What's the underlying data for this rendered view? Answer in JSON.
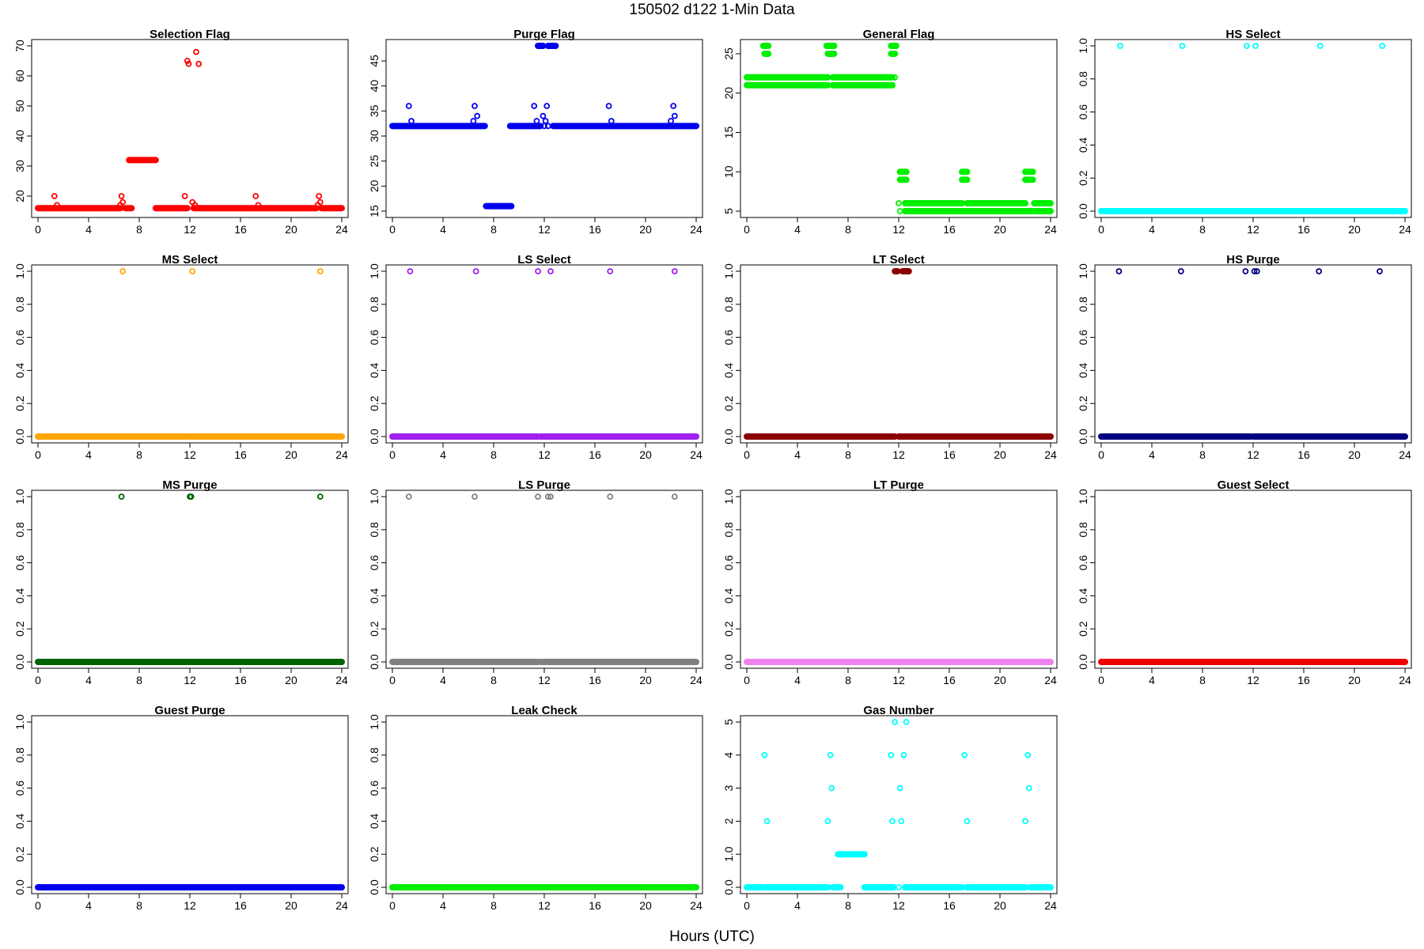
{
  "figure": {
    "title": "150502   d122   1-Min Data",
    "xlabel": "Hours (UTC)"
  },
  "chart_data": [
    {
      "type": "scatter",
      "title": "Selection Flag",
      "color": "#ff0000",
      "xlim": [
        0,
        24
      ],
      "ylim": [
        15,
        70
      ],
      "xticks": [
        0,
        4,
        8,
        12,
        16,
        20,
        24
      ],
      "yticks": [
        20,
        30,
        40,
        50,
        60,
        70
      ],
      "baseline": {
        "y": 16,
        "segments": [
          [
            0,
            6.5
          ],
          [
            6.9,
            7.4
          ],
          [
            9.3,
            11.8
          ],
          [
            12.3,
            22.0
          ],
          [
            22.4,
            24
          ]
        ]
      },
      "plateaus": [
        {
          "y": 32,
          "from": 7.2,
          "to": 9.3
        }
      ],
      "points": [
        [
          1.3,
          20
        ],
        [
          1.5,
          17
        ],
        [
          6.5,
          17
        ],
        [
          6.6,
          20
        ],
        [
          6.7,
          18
        ],
        [
          11.6,
          20
        ],
        [
          11.8,
          65
        ],
        [
          11.9,
          64
        ],
        [
          12.2,
          18
        ],
        [
          12.4,
          17
        ],
        [
          12.5,
          68
        ],
        [
          12.7,
          64
        ],
        [
          17.2,
          20
        ],
        [
          17.4,
          17
        ],
        [
          22.1,
          17
        ],
        [
          22.2,
          20
        ],
        [
          22.3,
          18
        ]
      ]
    },
    {
      "type": "scatter",
      "title": "Purge Flag",
      "color": "#0000ee",
      "xlim": [
        0,
        24
      ],
      "ylim": [
        15,
        48
      ],
      "xticks": [
        0,
        4,
        8,
        12,
        16,
        20,
        24
      ],
      "yticks": [
        15,
        20,
        25,
        30,
        35,
        40,
        45
      ],
      "baseline": {
        "y": 32,
        "segments": [
          [
            0,
            7.3
          ],
          [
            9.3,
            11.7
          ],
          [
            12.7,
            24
          ]
        ]
      },
      "plateaus": [
        {
          "y": 16,
          "from": 7.4,
          "to": 9.4
        },
        {
          "y": 48,
          "from": 11.5,
          "to": 11.9
        },
        {
          "y": 48,
          "from": 12.3,
          "to": 12.9
        }
      ],
      "points": [
        [
          1.3,
          36
        ],
        [
          1.5,
          33
        ],
        [
          6.4,
          33
        ],
        [
          6.5,
          36
        ],
        [
          6.7,
          34
        ],
        [
          11.2,
          36
        ],
        [
          11.4,
          33
        ],
        [
          11.9,
          34
        ],
        [
          12.0,
          32
        ],
        [
          12.1,
          33
        ],
        [
          12.2,
          36
        ],
        [
          12.3,
          32
        ],
        [
          17.1,
          36
        ],
        [
          17.3,
          33
        ],
        [
          22.0,
          33
        ],
        [
          22.2,
          36
        ],
        [
          22.3,
          34
        ]
      ]
    },
    {
      "type": "scatter",
      "title": "General Flag",
      "color": "#00ee00",
      "xlim": [
        0,
        24
      ],
      "ylim": [
        5,
        26
      ],
      "xticks": [
        0,
        4,
        8,
        12,
        16,
        20,
        24
      ],
      "yticks": [
        5,
        10,
        15,
        20,
        25
      ],
      "baseline": {
        "y": 22,
        "segments": [
          [
            0,
            1.6
          ],
          [
            1.7,
            6.4
          ],
          [
            6.8,
            11.5
          ]
        ]
      },
      "baseline2": {
        "y": 21,
        "segments": [
          [
            0,
            6.4
          ],
          [
            6.8,
            11.5
          ]
        ]
      },
      "plateaus": [
        {
          "y": 26,
          "from": 1.3,
          "to": 1.7
        },
        {
          "y": 25,
          "from": 1.4,
          "to": 1.7
        },
        {
          "y": 26,
          "from": 6.3,
          "to": 6.9
        },
        {
          "y": 25,
          "from": 6.4,
          "to": 6.9
        },
        {
          "y": 26,
          "from": 11.4,
          "to": 11.8
        },
        {
          "y": 25,
          "from": 11.4,
          "to": 11.7
        },
        {
          "y": 10,
          "from": 12.1,
          "to": 12.6
        },
        {
          "y": 9,
          "from": 12.1,
          "to": 12.6
        },
        {
          "y": 10,
          "from": 17.0,
          "to": 17.4
        },
        {
          "y": 9,
          "from": 17.0,
          "to": 17.4
        },
        {
          "y": 10,
          "from": 22.0,
          "to": 22.6
        },
        {
          "y": 9,
          "from": 22.0,
          "to": 22.6
        },
        {
          "y": 6,
          "from": 12.5,
          "to": 17.0
        },
        {
          "y": 6,
          "from": 17.4,
          "to": 22.0
        },
        {
          "y": 6,
          "from": 22.7,
          "to": 24
        },
        {
          "y": 5,
          "from": 12.5,
          "to": 22.5
        },
        {
          "y": 5,
          "from": 22.7,
          "to": 24
        }
      ],
      "points": [
        [
          11.7,
          22
        ],
        [
          12.0,
          6
        ],
        [
          12.1,
          5
        ]
      ]
    },
    {
      "type": "scatter",
      "title": "HS Select",
      "color": "#00ffff",
      "xlim": [
        0,
        24
      ],
      "ylim": [
        0,
        1
      ],
      "xticks": [
        0,
        4,
        8,
        12,
        16,
        20,
        24
      ],
      "yticks": [
        0,
        0.2,
        0.4,
        0.6,
        0.8,
        1.0
      ],
      "baseline": {
        "y": 0,
        "segments": [
          [
            0,
            11.8
          ],
          [
            12.0,
            24
          ]
        ]
      },
      "plateaus": [],
      "points": [
        [
          1.5,
          1
        ],
        [
          6.4,
          1
        ],
        [
          11.5,
          1
        ],
        [
          12.2,
          1
        ],
        [
          17.3,
          1
        ],
        [
          22.2,
          1
        ]
      ]
    },
    {
      "type": "scatter",
      "title": "MS Select",
      "color": "#ffa500",
      "xlim": [
        0,
        24
      ],
      "ylim": [
        0,
        1
      ],
      "xticks": [
        0,
        4,
        8,
        12,
        16,
        20,
        24
      ],
      "yticks": [
        0,
        0.2,
        0.4,
        0.6,
        0.8,
        1.0
      ],
      "baseline": {
        "y": 0,
        "segments": [
          [
            0,
            11.9
          ],
          [
            12.1,
            24
          ]
        ]
      },
      "plateaus": [],
      "points": [
        [
          6.7,
          1
        ],
        [
          12.2,
          1
        ],
        [
          22.3,
          1
        ]
      ]
    },
    {
      "type": "scatter",
      "title": "LS Select",
      "color": "#a020f0",
      "xlim": [
        0,
        24
      ],
      "ylim": [
        0,
        1
      ],
      "xticks": [
        0,
        4,
        8,
        12,
        16,
        20,
        24
      ],
      "yticks": [
        0,
        0.2,
        0.4,
        0.6,
        0.8,
        1.0
      ],
      "baseline": {
        "y": 0,
        "segments": [
          [
            0,
            11.5
          ],
          [
            11.7,
            24
          ]
        ]
      },
      "plateaus": [],
      "points": [
        [
          1.4,
          1
        ],
        [
          6.6,
          1
        ],
        [
          11.5,
          1
        ],
        [
          12.5,
          1
        ],
        [
          17.2,
          1
        ],
        [
          22.3,
          1
        ]
      ]
    },
    {
      "type": "scatter",
      "title": "LT Select",
      "color": "#8b0000",
      "xlim": [
        0,
        24
      ],
      "ylim": [
        0,
        1
      ],
      "xticks": [
        0,
        4,
        8,
        12,
        16,
        20,
        24
      ],
      "yticks": [
        0,
        0.2,
        0.4,
        0.6,
        0.8,
        1.0
      ],
      "baseline": {
        "y": 0,
        "segments": [
          [
            0,
            11.7
          ],
          [
            12.0,
            12.7
          ],
          [
            12.8,
            24
          ]
        ]
      },
      "plateaus": [
        {
          "y": 1,
          "from": 11.7,
          "to": 11.9
        },
        {
          "y": 1,
          "from": 12.3,
          "to": 12.8
        }
      ],
      "points": []
    },
    {
      "type": "scatter",
      "title": "HS Purge",
      "color": "#000080",
      "xlim": [
        0,
        24
      ],
      "ylim": [
        0,
        1
      ],
      "xticks": [
        0,
        4,
        8,
        12,
        16,
        20,
        24
      ],
      "yticks": [
        0,
        0.2,
        0.4,
        0.6,
        0.8,
        1.0
      ],
      "baseline": {
        "y": 0,
        "segments": [
          [
            0,
            11.8
          ],
          [
            12.0,
            24
          ]
        ]
      },
      "plateaus": [],
      "points": [
        [
          1.4,
          1
        ],
        [
          6.3,
          1
        ],
        [
          11.4,
          1
        ],
        [
          12.1,
          1
        ],
        [
          12.3,
          1
        ],
        [
          17.2,
          1
        ],
        [
          22.0,
          1
        ]
      ]
    },
    {
      "type": "scatter",
      "title": "MS Purge",
      "color": "#006400",
      "xlim": [
        0,
        24
      ],
      "ylim": [
        0,
        1
      ],
      "xticks": [
        0,
        4,
        8,
        12,
        16,
        20,
        24
      ],
      "yticks": [
        0,
        0.2,
        0.4,
        0.6,
        0.8,
        1.0
      ],
      "baseline": {
        "y": 0,
        "segments": [
          [
            0,
            11.9
          ],
          [
            12.0,
            24
          ]
        ]
      },
      "plateaus": [],
      "points": [
        [
          6.6,
          1
        ],
        [
          12.0,
          1
        ],
        [
          12.1,
          1
        ],
        [
          22.3,
          1
        ]
      ]
    },
    {
      "type": "scatter",
      "title": "LS Purge",
      "color": "#808080",
      "xlim": [
        0,
        24
      ],
      "ylim": [
        0,
        1
      ],
      "xticks": [
        0,
        4,
        8,
        12,
        16,
        20,
        24
      ],
      "yticks": [
        0,
        0.2,
        0.4,
        0.6,
        0.8,
        1.0
      ],
      "baseline": {
        "y": 0,
        "segments": [
          [
            0,
            11.6
          ],
          [
            11.8,
            24
          ]
        ]
      },
      "plateaus": [],
      "points": [
        [
          1.3,
          1
        ],
        [
          6.5,
          1
        ],
        [
          11.5,
          1
        ],
        [
          12.3,
          1
        ],
        [
          12.5,
          1
        ],
        [
          17.2,
          1
        ],
        [
          22.3,
          1
        ]
      ]
    },
    {
      "type": "scatter",
      "title": "LT Purge",
      "color": "#ee82ee",
      "xlim": [
        0,
        24
      ],
      "ylim": [
        0,
        1
      ],
      "xticks": [
        0,
        4,
        8,
        12,
        16,
        20,
        24
      ],
      "yticks": [
        0,
        0.2,
        0.4,
        0.6,
        0.8,
        1.0
      ],
      "baseline": {
        "y": 0,
        "segments": [
          [
            0,
            11.8
          ],
          [
            11.9,
            24
          ]
        ]
      },
      "plateaus": [],
      "points": []
    },
    {
      "type": "scatter",
      "title": "Guest Select",
      "color": "#ee0000",
      "xlim": [
        0,
        24
      ],
      "ylim": [
        0,
        1
      ],
      "xticks": [
        0,
        4,
        8,
        12,
        16,
        20,
        24
      ],
      "yticks": [
        0,
        0.2,
        0.4,
        0.6,
        0.8,
        1.0
      ],
      "baseline": {
        "y": 0,
        "segments": [
          [
            0,
            11.8
          ],
          [
            11.9,
            24
          ]
        ]
      },
      "plateaus": [],
      "points": []
    },
    {
      "type": "scatter",
      "title": "Guest Purge",
      "color": "#0000ee",
      "xlim": [
        0,
        24
      ],
      "ylim": [
        0,
        1
      ],
      "xticks": [
        0,
        4,
        8,
        12,
        16,
        20,
        24
      ],
      "yticks": [
        0,
        0.2,
        0.4,
        0.6,
        0.8,
        1.0
      ],
      "baseline": {
        "y": 0,
        "segments": [
          [
            0,
            11.8
          ],
          [
            11.9,
            24
          ]
        ]
      },
      "plateaus": [],
      "points": []
    },
    {
      "type": "scatter",
      "title": "Leak Check",
      "color": "#00ee00",
      "xlim": [
        0,
        24
      ],
      "ylim": [
        0,
        1
      ],
      "xticks": [
        0,
        4,
        8,
        12,
        16,
        20,
        24
      ],
      "yticks": [
        0,
        0.2,
        0.4,
        0.6,
        0.8,
        1.0
      ],
      "baseline": {
        "y": 0,
        "segments": [
          [
            0,
            11.8
          ],
          [
            11.9,
            24
          ]
        ]
      },
      "plateaus": [],
      "points": []
    },
    {
      "type": "scatter",
      "title": "Gas Number",
      "color": "#00ffff",
      "xlim": [
        0,
        24
      ],
      "ylim": [
        0,
        5
      ],
      "xticks": [
        0,
        4,
        8,
        12,
        16,
        20,
        24
      ],
      "yticks": [
        0,
        1,
        2,
        3,
        4,
        5
      ],
      "baseline": {
        "y": 0,
        "segments": [
          [
            0,
            1.3
          ],
          [
            1.6,
            6.4
          ],
          [
            6.8,
            7.4
          ],
          [
            9.3,
            11.6
          ],
          [
            12.5,
            17.0
          ],
          [
            17.4,
            22.0
          ],
          [
            22.4,
            24
          ]
        ]
      },
      "plateaus": [
        {
          "y": 1,
          "from": 7.2,
          "to": 9.3
        }
      ],
      "points": [
        [
          1.4,
          4
        ],
        [
          1.6,
          2
        ],
        [
          6.4,
          2
        ],
        [
          6.6,
          4
        ],
        [
          6.7,
          3
        ],
        [
          11.4,
          4
        ],
        [
          11.5,
          2
        ],
        [
          11.7,
          5
        ],
        [
          12.0,
          0
        ],
        [
          12.1,
          3
        ],
        [
          12.2,
          2
        ],
        [
          12.4,
          4
        ],
        [
          12.6,
          5
        ],
        [
          17.2,
          4
        ],
        [
          17.4,
          2
        ],
        [
          22.0,
          2
        ],
        [
          22.2,
          4
        ],
        [
          22.3,
          3
        ]
      ]
    }
  ]
}
